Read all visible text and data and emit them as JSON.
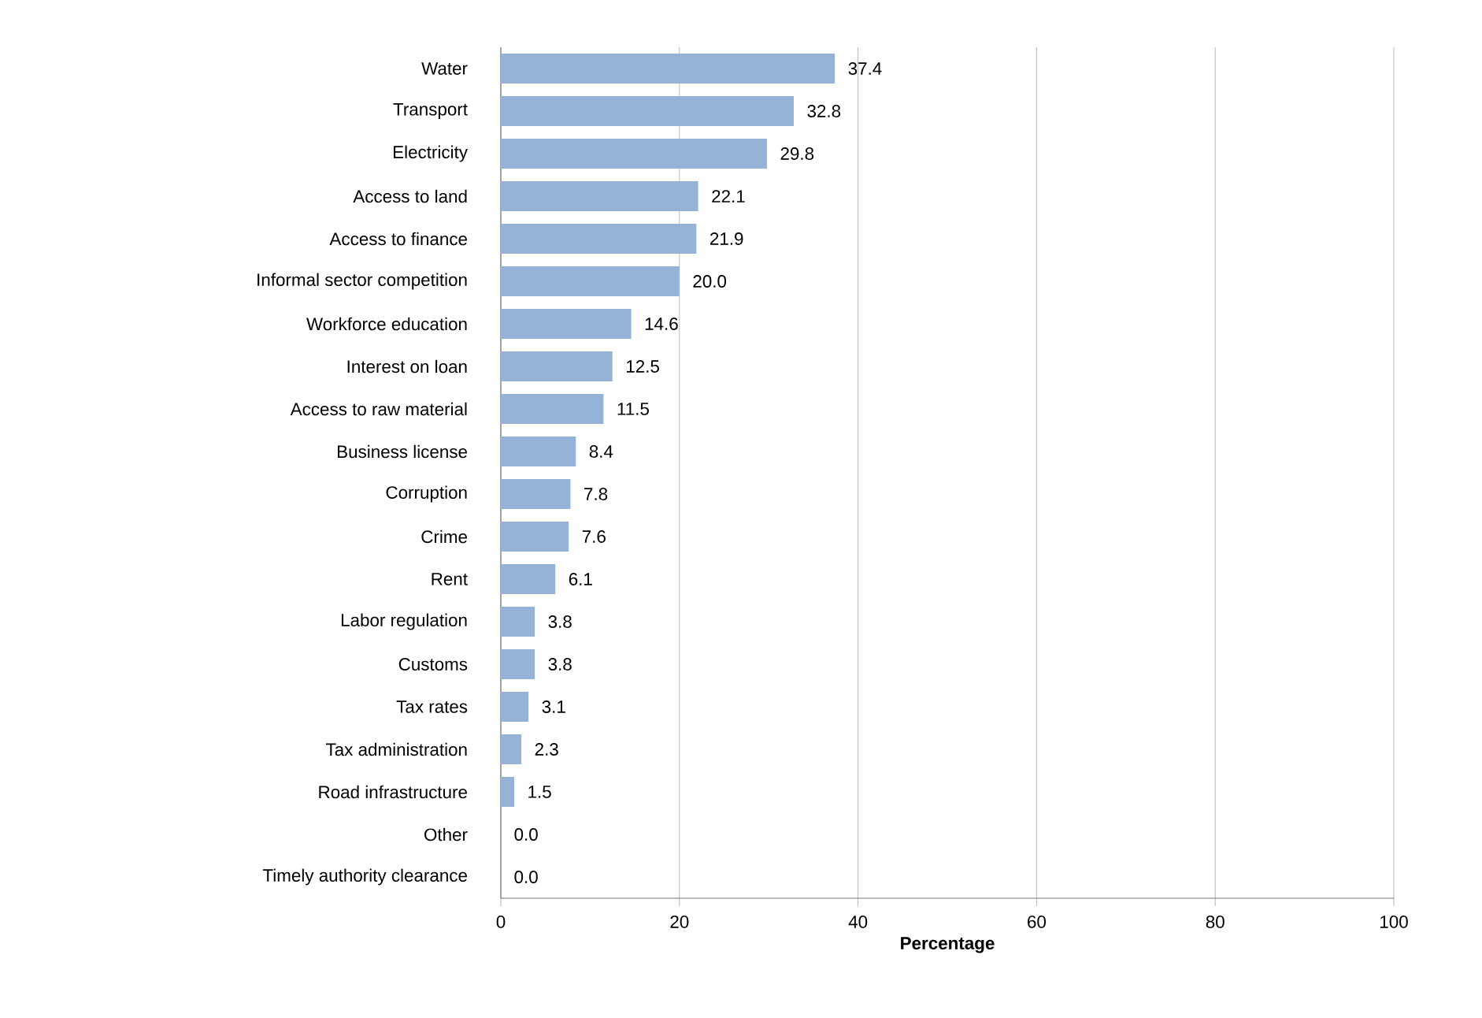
{
  "chart_data": {
    "type": "bar",
    "orientation": "horizontal",
    "xlabel": "Percentage",
    "categories": [
      "Water",
      "Transport",
      "Electricity",
      "Access to land",
      "Access to finance",
      "Informal sector competition",
      "Workforce education",
      "Interest on loan",
      "Access to raw material",
      "Business license",
      "Corruption",
      "Crime",
      "Rent",
      "Labor regulation",
      "Customs",
      "Tax rates",
      "Tax administration",
      "Road infrastructure",
      "Other",
      "Timely authority clearance"
    ],
    "values": [
      37.4,
      32.8,
      29.8,
      22.1,
      21.9,
      20.0,
      14.6,
      12.5,
      11.5,
      8.4,
      7.8,
      7.6,
      6.1,
      3.8,
      3.8,
      3.1,
      2.3,
      1.5,
      0.0,
      0.0
    ],
    "value_labels": [
      "37.4",
      "32.8",
      "29.8",
      "22.1",
      "21.9",
      "20.0",
      "14.6",
      "12.5",
      "11.5",
      "8.4",
      "7.8",
      "7.6",
      "6.1",
      "3.8",
      "3.8",
      "3.1",
      "2.3",
      "1.5",
      "0.0",
      "0.0"
    ],
    "color": "#95b3d7",
    "xlim": [
      0,
      100
    ],
    "xticks": [
      0,
      20,
      40,
      60,
      80,
      100
    ],
    "grid": "x"
  }
}
